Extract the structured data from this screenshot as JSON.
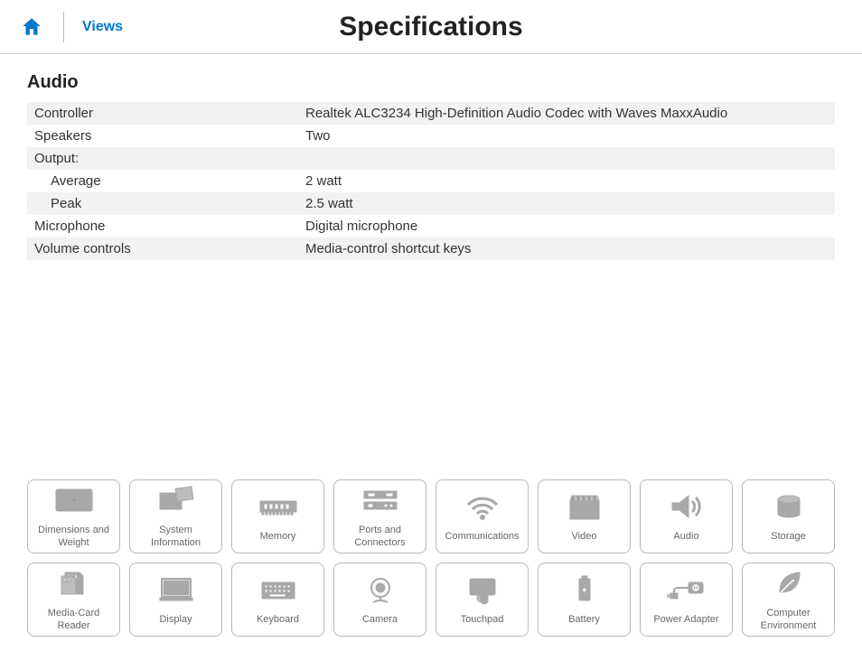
{
  "header": {
    "home_icon": "home-icon",
    "views_link": "Views",
    "page_title": "Specifications"
  },
  "section": {
    "heading": "Audio",
    "rows": [
      {
        "label": "Controller",
        "value": "Realtek ALC3234 High-Definition Audio Codec with Waves MaxxAudio",
        "indent": false
      },
      {
        "label": "Speakers",
        "value": "Two",
        "indent": false
      },
      {
        "label": "Output:",
        "value": "",
        "indent": false
      },
      {
        "label": "Average",
        "value": "2 watt",
        "indent": true
      },
      {
        "label": "Peak",
        "value": "2.5 watt",
        "indent": true
      },
      {
        "label": "Microphone",
        "value": "Digital microphone",
        "indent": false
      },
      {
        "label": "Volume controls",
        "value": "Media-control shortcut keys",
        "indent": false
      }
    ]
  },
  "tiles": {
    "row1": [
      {
        "name": "dimensions",
        "label": "Dimensions and Weight",
        "icon": "dimensions-icon"
      },
      {
        "name": "system-info",
        "label": "System Information",
        "icon": "system-info-icon"
      },
      {
        "name": "memory",
        "label": "Memory",
        "icon": "memory-icon"
      },
      {
        "name": "ports",
        "label": "Ports and Connectors",
        "icon": "ports-icon"
      },
      {
        "name": "communications",
        "label": "Communications",
        "icon": "wifi-icon"
      },
      {
        "name": "video",
        "label": "Video",
        "icon": "video-icon"
      },
      {
        "name": "audio",
        "label": "Audio",
        "icon": "speaker-icon"
      },
      {
        "name": "storage",
        "label": "Storage",
        "icon": "storage-icon"
      }
    ],
    "row2": [
      {
        "name": "media-card",
        "label": "Media-Card Reader",
        "icon": "sd-card-icon"
      },
      {
        "name": "display",
        "label": "Display",
        "icon": "display-icon"
      },
      {
        "name": "keyboard",
        "label": "Keyboard",
        "icon": "keyboard-icon"
      },
      {
        "name": "camera",
        "label": "Camera",
        "icon": "camera-icon"
      },
      {
        "name": "touchpad",
        "label": "Touchpad",
        "icon": "touchpad-icon"
      },
      {
        "name": "battery",
        "label": "Battery",
        "icon": "battery-icon"
      },
      {
        "name": "power-adapter",
        "label": "Power Adapter",
        "icon": "power-adapter-icon"
      },
      {
        "name": "environment",
        "label": "Computer Environment",
        "icon": "leaf-icon"
      }
    ]
  },
  "colors": {
    "accent": "#0077cc",
    "text": "#333333",
    "heading": "#222222",
    "row_alt": "#f2f2f2",
    "tile_border": "#b8b8b8",
    "tile_icon": "#a8a8a8",
    "tile_label": "#666666"
  }
}
